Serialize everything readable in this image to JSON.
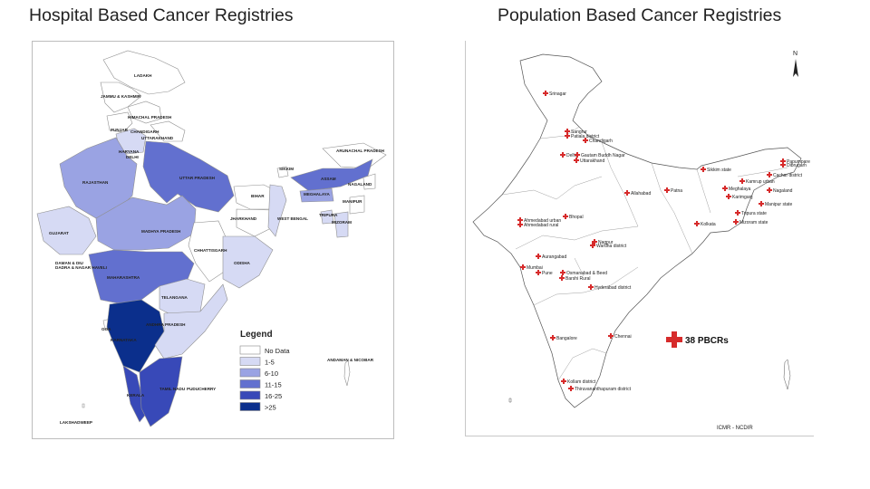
{
  "left": {
    "title": "Hospital Based Cancer Registries",
    "legend": {
      "title": "Legend",
      "items": [
        {
          "label": "No  Data",
          "color": "#ffffff"
        },
        {
          "label": "1-5",
          "color": "#d6daf4"
        },
        {
          "label": "6-10",
          "color": "#9aa3e3"
        },
        {
          "label": "11-15",
          "color": "#6270cf"
        },
        {
          "label": "16-25",
          "color": "#3849b8"
        },
        {
          "label": ">25",
          "color": "#0b2f8c"
        }
      ]
    },
    "labels": {
      "ladakh": "LADAKH",
      "jk": "JAMMU & KASHMIR",
      "hp": "HIMACHAL PRADESH",
      "punjab": "PUNJAB",
      "chandigarh": "CHANDIGARH",
      "uttarakhand": "UTTARAKHAND",
      "haryana": "HARYANA",
      "delhi": "DELHI",
      "rajasthan": "RAJASTHAN",
      "up": "UTTAR PRADESH",
      "sikkim": "SIKKIM",
      "arunachal": "ARUNACHAL PRADESH",
      "assam": "ASSAM",
      "nagaland": "NAGALAND",
      "bihar": "BIHAR",
      "meghalaya": "MEGHALAYA",
      "manipur": "MANIPUR",
      "jharkhand": "JHARKHAND",
      "wb": "WEST BENGAL",
      "tripura": "TRIPURA",
      "mizoram": "MIZORAM",
      "gujarat": "GUJARAT",
      "mp": "MADHYA PRADESH",
      "chhattisgarh": "CHHATTISGARH",
      "dnh": "DAMAN & DIU",
      "dnh2": "DADRA & NAGAR HAVELI",
      "odisha": "ODISHA",
      "maharashtra": "MAHARASHTRA",
      "telangana": "TELANGANA",
      "goa": "GOA",
      "ap": "ANDHRA PRADESH",
      "karnataka": "KARNATAKA",
      "andaman": "ANDAMAN & NICOBAR",
      "tn": "TAMIL NADU",
      "puducherry": "PUDUCHERRY",
      "kerala": "KERALA",
      "lakshadweep": "LAKSHADWEEP"
    }
  },
  "right": {
    "title": "Population Based Cancer Registries",
    "north_arrow": "N",
    "count_label": "38 PBCRs",
    "source": "Source:NCDIR",
    "source_mid": "ICMR - NCDIR",
    "cities": [
      "Srinagar",
      "Sangrur",
      "Patiala district",
      "Chandigarh",
      "Delhi",
      "Uttarakhand",
      "Allahabad",
      "Patna",
      "Sikkim state",
      "Dibrugarh",
      "Cachar district",
      "Kamrup urban",
      "Meghalaya",
      "Nagaland",
      "Manipur state",
      "Tripura state",
      "Mizoram state",
      "Kolkata",
      "Ahmedabad urban",
      "Bhopal",
      "Wardha district",
      "Nagpur",
      "Aurangabad",
      "Mumbai",
      "Pune",
      "Osmanabad & Beed",
      "Barshi Rural",
      "Hyderabad district",
      "Chennai",
      "Bangalore",
      "Kollam district",
      "Thiruvananthapuram district",
      "Ahmedabad rural",
      "Papumpare",
      "Gautam Buddh Nagar",
      "Karimganj"
    ]
  },
  "colors": {
    "accent_marker": "#d62b2b",
    "border": "#9a9a9a"
  }
}
